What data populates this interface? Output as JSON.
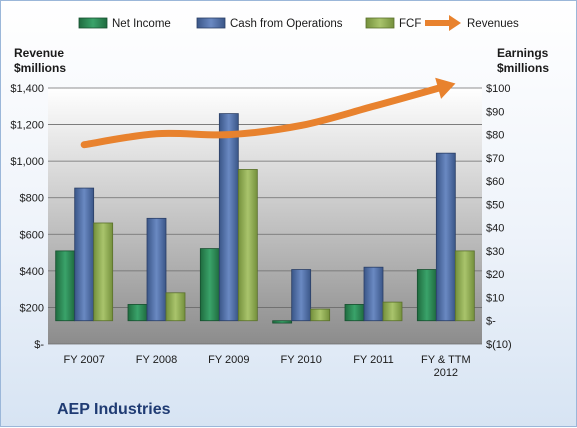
{
  "chart_data": {
    "type": "bar",
    "title": "AEP Industries",
    "categories": [
      "FY 2007",
      "FY 2008",
      "FY 2009",
      "FY 2010",
      "FY 2011",
      "FY & TTM 2012"
    ],
    "series": [
      {
        "name": "Net Income",
        "axis": "right",
        "values": [
          30,
          7,
          31,
          -1,
          7,
          22
        ]
      },
      {
        "name": "Cash from Operations",
        "axis": "right",
        "values": [
          57,
          44,
          89,
          22,
          23,
          72
        ]
      },
      {
        "name": "FCF",
        "axis": "right",
        "values": [
          42,
          12,
          65,
          5,
          8,
          30
        ]
      },
      {
        "name": "Revenues",
        "axis": "left",
        "type": "line",
        "values": [
          1090,
          1150,
          1145,
          1195,
          1300,
          1410
        ]
      }
    ],
    "left_axis": {
      "label_line1": "Revenue",
      "label_line2": "$millions",
      "ylim": [
        0,
        1400
      ],
      "tick_values": [
        0,
        200,
        400,
        600,
        800,
        1000,
        1200,
        1400
      ],
      "tick_labels": [
        "$-",
        "$200",
        "$400",
        "$600",
        "$800",
        "$1,000",
        "$1,200",
        "$1,400"
      ]
    },
    "right_axis": {
      "label_line1": "Earnings",
      "label_line2": "$millions",
      "ylim": [
        -10,
        100
      ],
      "tick_values": [
        -10,
        0,
        10,
        20,
        30,
        40,
        50,
        60,
        70,
        80,
        90,
        100
      ],
      "tick_labels": [
        "$(10)",
        "$-",
        "$10",
        "$20",
        "$30",
        "$40",
        "$50",
        "$60",
        "$70",
        "$80",
        "$90",
        "$100"
      ]
    },
    "x_tick_labels": [
      [
        "FY 2007"
      ],
      [
        "FY 2008"
      ],
      [
        "FY 2009"
      ],
      [
        "FY 2010"
      ],
      [
        "FY 2011"
      ],
      [
        "FY & TTM",
        "2012"
      ]
    ],
    "legend_position": "top",
    "grid": true,
    "colors": {
      "Net Income": "#2e8b57",
      "Cash from Operations": "#4f6fa8",
      "FCF": "#93ad57",
      "Revenues": "#e8822e"
    }
  }
}
